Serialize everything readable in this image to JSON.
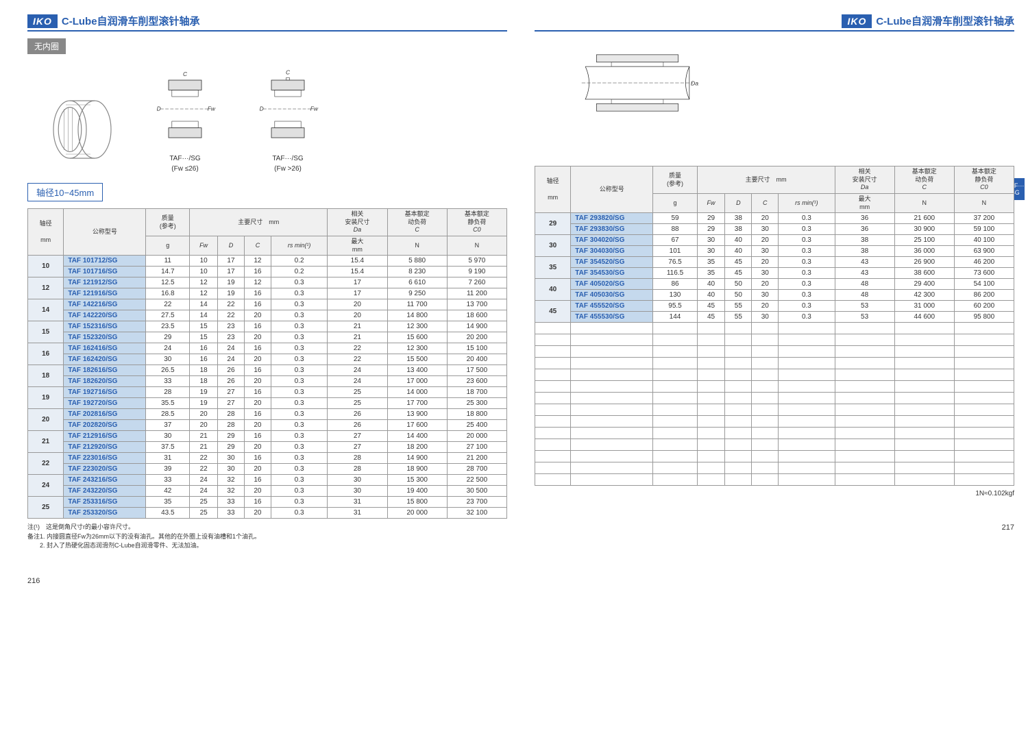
{
  "logo": "IKO",
  "headerTitle": "C-Lube自润滑车削型滚针轴承",
  "subtitle": "无内圈",
  "shaftRange": "轴径10−45mm",
  "diagramLabel1a": "TAF···/SG",
  "diagramLabel1b": "(Fw ≤26)",
  "diagramLabel2a": "TAF···/SG",
  "diagramLabel2b": "(Fw >26)",
  "sideTab1": "TAF···",
  "sideTab2": "/SG",
  "headers": {
    "dia": "轴径",
    "diaUnit": "mm",
    "model": "公称型号",
    "mass": "质量",
    "massRef": "(参考)",
    "massUnit": "g",
    "mainDim": "主要尺寸　mm",
    "fw": "Fw",
    "d": "D",
    "c": "C",
    "rs": "rs min(¹)",
    "related": "相关",
    "installDim": "安装尺寸",
    "da": "Da",
    "daMax": "最大",
    "daUnit": "mm",
    "dynLoad": "基本额定",
    "dynLoad2": "动负荷",
    "cSymbol": "C",
    "n": "N",
    "statLoad": "基本额定",
    "statLoad2": "静负荷",
    "c0": "C0"
  },
  "leftRows": [
    {
      "dia": "10",
      "m": [
        "TAF 101712/SG",
        "TAF 101716/SG"
      ],
      "g": [
        "11",
        "14.7"
      ],
      "fw": [
        "10",
        "10"
      ],
      "d": [
        "17",
        "17"
      ],
      "c": [
        "12",
        "16"
      ],
      "rs": [
        "0.2",
        "0.2"
      ],
      "da": [
        "15.4",
        "15.4"
      ],
      "cd": [
        "5 880",
        "8 230"
      ],
      "c0": [
        "5 970",
        "9 190"
      ]
    },
    {
      "dia": "12",
      "m": [
        "TAF 121912/SG",
        "TAF 121916/SG"
      ],
      "g": [
        "12.5",
        "16.8"
      ],
      "fw": [
        "12",
        "12"
      ],
      "d": [
        "19",
        "19"
      ],
      "c": [
        "12",
        "16"
      ],
      "rs": [
        "0.3",
        "0.3"
      ],
      "da": [
        "17",
        "17"
      ],
      "cd": [
        "6 610",
        "9 250"
      ],
      "c0": [
        "7 260",
        "11 200"
      ]
    },
    {
      "dia": "14",
      "m": [
        "TAF 142216/SG",
        "TAF 142220/SG"
      ],
      "g": [
        "22",
        "27.5"
      ],
      "fw": [
        "14",
        "14"
      ],
      "d": [
        "22",
        "22"
      ],
      "c": [
        "16",
        "20"
      ],
      "rs": [
        "0.3",
        "0.3"
      ],
      "da": [
        "20",
        "20"
      ],
      "cd": [
        "11 700",
        "14 800"
      ],
      "c0": [
        "13 700",
        "18 600"
      ]
    },
    {
      "dia": "15",
      "m": [
        "TAF 152316/SG",
        "TAF 152320/SG"
      ],
      "g": [
        "23.5",
        "29"
      ],
      "fw": [
        "15",
        "15"
      ],
      "d": [
        "23",
        "23"
      ],
      "c": [
        "16",
        "20"
      ],
      "rs": [
        "0.3",
        "0.3"
      ],
      "da": [
        "21",
        "21"
      ],
      "cd": [
        "12 300",
        "15 600"
      ],
      "c0": [
        "14 900",
        "20 200"
      ]
    },
    {
      "dia": "16",
      "m": [
        "TAF 162416/SG",
        "TAF 162420/SG"
      ],
      "g": [
        "24",
        "30"
      ],
      "fw": [
        "16",
        "16"
      ],
      "d": [
        "24",
        "24"
      ],
      "c": [
        "16",
        "20"
      ],
      "rs": [
        "0.3",
        "0.3"
      ],
      "da": [
        "22",
        "22"
      ],
      "cd": [
        "12 300",
        "15 500"
      ],
      "c0": [
        "15 100",
        "20 400"
      ]
    },
    {
      "dia": "18",
      "m": [
        "TAF 182616/SG",
        "TAF 182620/SG"
      ],
      "g": [
        "26.5",
        "33"
      ],
      "fw": [
        "18",
        "18"
      ],
      "d": [
        "26",
        "26"
      ],
      "c": [
        "16",
        "20"
      ],
      "rs": [
        "0.3",
        "0.3"
      ],
      "da": [
        "24",
        "24"
      ],
      "cd": [
        "13 400",
        "17 000"
      ],
      "c0": [
        "17 500",
        "23 600"
      ]
    },
    {
      "dia": "19",
      "m": [
        "TAF 192716/SG",
        "TAF 192720/SG"
      ],
      "g": [
        "28",
        "35.5"
      ],
      "fw": [
        "19",
        "19"
      ],
      "d": [
        "27",
        "27"
      ],
      "c": [
        "16",
        "20"
      ],
      "rs": [
        "0.3",
        "0.3"
      ],
      "da": [
        "25",
        "25"
      ],
      "cd": [
        "14 000",
        "17 700"
      ],
      "c0": [
        "18 700",
        "25 300"
      ]
    },
    {
      "dia": "20",
      "m": [
        "TAF 202816/SG",
        "TAF 202820/SG"
      ],
      "g": [
        "28.5",
        "37"
      ],
      "fw": [
        "20",
        "20"
      ],
      "d": [
        "28",
        "28"
      ],
      "c": [
        "16",
        "20"
      ],
      "rs": [
        "0.3",
        "0.3"
      ],
      "da": [
        "26",
        "26"
      ],
      "cd": [
        "13 900",
        "17 600"
      ],
      "c0": [
        "18 800",
        "25 400"
      ]
    },
    {
      "dia": "21",
      "m": [
        "TAF 212916/SG",
        "TAF 212920/SG"
      ],
      "g": [
        "30",
        "37.5"
      ],
      "fw": [
        "21",
        "21"
      ],
      "d": [
        "29",
        "29"
      ],
      "c": [
        "16",
        "20"
      ],
      "rs": [
        "0.3",
        "0.3"
      ],
      "da": [
        "27",
        "27"
      ],
      "cd": [
        "14 400",
        "18 200"
      ],
      "c0": [
        "20 000",
        "27 100"
      ]
    },
    {
      "dia": "22",
      "m": [
        "TAF 223016/SG",
        "TAF 223020/SG"
      ],
      "g": [
        "31",
        "39"
      ],
      "fw": [
        "22",
        "22"
      ],
      "d": [
        "30",
        "30"
      ],
      "c": [
        "16",
        "20"
      ],
      "rs": [
        "0.3",
        "0.3"
      ],
      "da": [
        "28",
        "28"
      ],
      "cd": [
        "14 900",
        "18 900"
      ],
      "c0": [
        "21 200",
        "28 700"
      ]
    },
    {
      "dia": "24",
      "m": [
        "TAF 243216/SG",
        "TAF 243220/SG"
      ],
      "g": [
        "33",
        "42"
      ],
      "fw": [
        "24",
        "24"
      ],
      "d": [
        "32",
        "32"
      ],
      "c": [
        "16",
        "20"
      ],
      "rs": [
        "0.3",
        "0.3"
      ],
      "da": [
        "30",
        "30"
      ],
      "cd": [
        "15 300",
        "19 400"
      ],
      "c0": [
        "22 500",
        "30 500"
      ]
    },
    {
      "dia": "25",
      "m": [
        "TAF 253316/SG",
        "TAF 253320/SG"
      ],
      "g": [
        "35",
        "43.5"
      ],
      "fw": [
        "25",
        "25"
      ],
      "d": [
        "33",
        "33"
      ],
      "c": [
        "16",
        "20"
      ],
      "rs": [
        "0.3",
        "0.3"
      ],
      "da": [
        "31",
        "31"
      ],
      "cd": [
        "15 800",
        "20 000"
      ],
      "c0": [
        "23 700",
        "32 100"
      ]
    }
  ],
  "rightRows": [
    {
      "dia": "29",
      "m": [
        "TAF 293820/SG",
        "TAF 293830/SG"
      ],
      "g": [
        "59",
        "88"
      ],
      "fw": [
        "29",
        "29"
      ],
      "d": [
        "38",
        "38"
      ],
      "c": [
        "20",
        "30"
      ],
      "rs": [
        "0.3",
        "0.3"
      ],
      "da": [
        "36",
        "36"
      ],
      "cd": [
        "21 600",
        "30 900"
      ],
      "c0": [
        "37 200",
        "59 100"
      ]
    },
    {
      "dia": "30",
      "m": [
        "TAF 304020/SG",
        "TAF 304030/SG"
      ],
      "g": [
        "67",
        "101"
      ],
      "fw": [
        "30",
        "30"
      ],
      "d": [
        "40",
        "40"
      ],
      "c": [
        "20",
        "30"
      ],
      "rs": [
        "0.3",
        "0.3"
      ],
      "da": [
        "38",
        "38"
      ],
      "cd": [
        "25 100",
        "36 000"
      ],
      "c0": [
        "40 100",
        "63 900"
      ]
    },
    {
      "dia": "35",
      "m": [
        "TAF 354520/SG",
        "TAF 354530/SG"
      ],
      "g": [
        "76.5",
        "116.5"
      ],
      "fw": [
        "35",
        "35"
      ],
      "d": [
        "45",
        "45"
      ],
      "c": [
        "20",
        "30"
      ],
      "rs": [
        "0.3",
        "0.3"
      ],
      "da": [
        "43",
        "43"
      ],
      "cd": [
        "26 900",
        "38 600"
      ],
      "c0": [
        "46 200",
        "73 600"
      ]
    },
    {
      "dia": "40",
      "m": [
        "TAF 405020/SG",
        "TAF 405030/SG"
      ],
      "g": [
        "86",
        "130"
      ],
      "fw": [
        "40",
        "40"
      ],
      "d": [
        "50",
        "50"
      ],
      "c": [
        "20",
        "30"
      ],
      "rs": [
        "0.3",
        "0.3"
      ],
      "da": [
        "48",
        "48"
      ],
      "cd": [
        "29 400",
        "42 300"
      ],
      "c0": [
        "54 100",
        "86 200"
      ]
    },
    {
      "dia": "45",
      "m": [
        "TAF 455520/SG",
        "TAF 455530/SG"
      ],
      "g": [
        "95.5",
        "144"
      ],
      "fw": [
        "45",
        "45"
      ],
      "d": [
        "55",
        "55"
      ],
      "c": [
        "20",
        "30"
      ],
      "rs": [
        "0.3",
        "0.3"
      ],
      "da": [
        "53",
        "53"
      ],
      "cd": [
        "31 000",
        "44 600"
      ],
      "c0": [
        "60 200",
        "95 800"
      ]
    }
  ],
  "notes": {
    "n1": "注(¹)　这是倒角尺寸r的最小容许尺寸。",
    "n2": "备注1. 内接圆直径Fw为26mm以下的没有油孔。其他的在外圈上设有油槽和1个油孔。",
    "n3": "　　2. 封入了热硬化固态润滑剂C-Lube自润滑零件、无法加油。"
  },
  "noteRight": "1N≈0.102kgf",
  "pageLeft": "216",
  "pageRight": "217"
}
